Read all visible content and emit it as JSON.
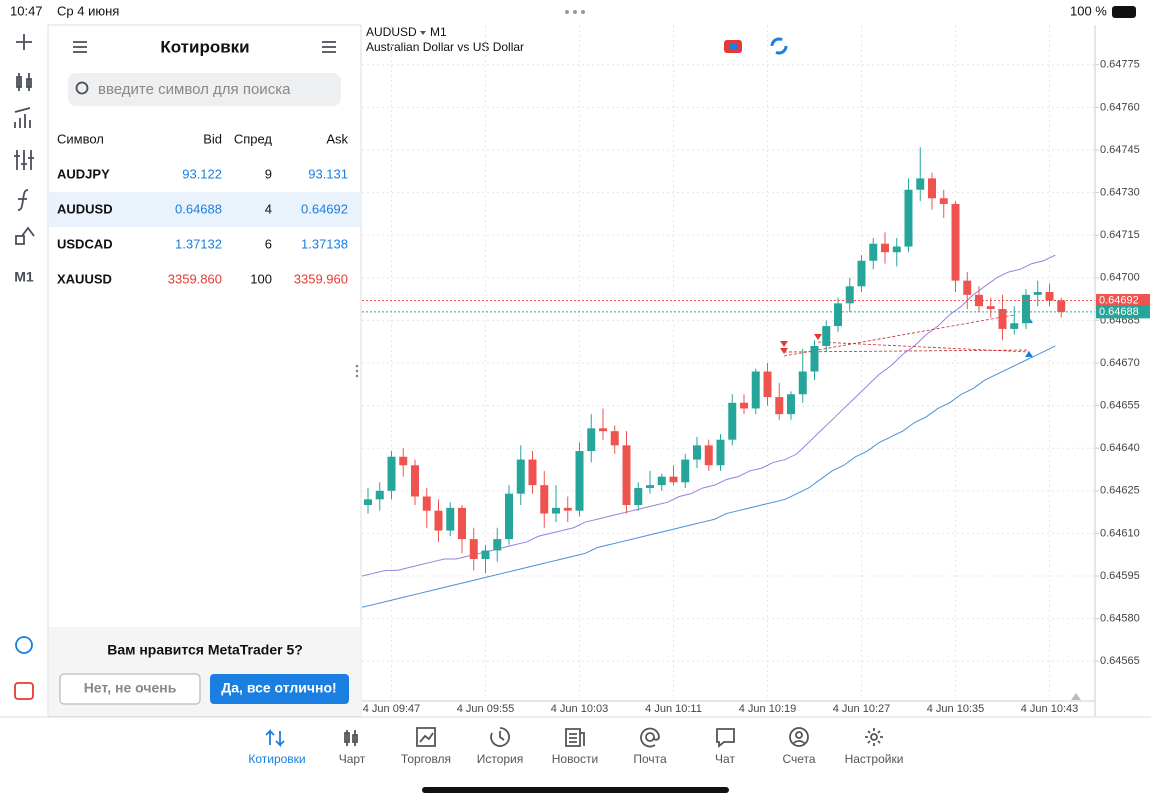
{
  "status": {
    "time": "10:47",
    "date": "Ср 4 июня",
    "battery": "100 %"
  },
  "quotes": {
    "title": "Котировки",
    "search_placeholder": "введите символ для поиска",
    "columns": [
      "Символ",
      "Bid",
      "Спред",
      "Ask"
    ],
    "rows": [
      {
        "symbol": "AUDJPY",
        "bid": "93.122",
        "spread": "9",
        "ask": "93.131"
      },
      {
        "symbol": "AUDUSD",
        "bid": "0.64688",
        "spread": "4",
        "ask": "0.64692"
      },
      {
        "symbol": "USDCAD",
        "bid": "1.37132",
        "spread": "6",
        "ask": "1.37138"
      },
      {
        "symbol": "XAUUSD",
        "bid": "3359.860",
        "spread": "100",
        "ask": "3359.960"
      }
    ]
  },
  "feedback": {
    "question": "Вам нравится MetaTrader 5?",
    "no": "Нет, не очень",
    "yes": "Да, все отлично!"
  },
  "sidebar": {
    "timeframe": "M1"
  },
  "nav": {
    "tabs": [
      "Котировки",
      "Чарт",
      "Торговля",
      "История",
      "Новости",
      "Почта",
      "Чат",
      "Счета",
      "Настройки"
    ]
  },
  "chart_data": {
    "type": "candlestick",
    "title": "AUDUSD",
    "timeframe": "M1",
    "subtitle": "Australian Dollar vs US Dollar",
    "up_color": "#26a69a",
    "down_color": "#ef5350",
    "categories": [
      null,
      null,
      "4 Jun 09:47",
      null,
      null,
      null,
      null,
      null,
      null,
      null,
      "4 Jun 09:55",
      null,
      null,
      null,
      null,
      null,
      null,
      null,
      "4 Jun 10:03",
      null,
      null,
      null,
      null,
      null,
      null,
      null,
      "4 Jun 10:11",
      null,
      null,
      null,
      null,
      null,
      null,
      null,
      "4 Jun 10:19",
      null,
      null,
      null,
      null,
      null,
      null,
      null,
      "4 Jun 10:27",
      null,
      null,
      null,
      null,
      null,
      null,
      null,
      "4 Jun 10:35",
      null,
      null,
      null,
      null,
      null,
      null,
      null,
      "4 Jun 10:43",
      null
    ],
    "candles": [
      [
        0.6462,
        0.64626,
        0.64617,
        0.64622
      ],
      [
        0.64622,
        0.64628,
        0.64618,
        0.64625
      ],
      [
        0.64625,
        0.64639,
        0.64622,
        0.64637
      ],
      [
        0.64637,
        0.6464,
        0.6463,
        0.64634
      ],
      [
        0.64634,
        0.64636,
        0.6462,
        0.64623
      ],
      [
        0.64623,
        0.64626,
        0.64612,
        0.64618
      ],
      [
        0.64618,
        0.64622,
        0.64607,
        0.64611
      ],
      [
        0.64611,
        0.64621,
        0.64609,
        0.64619
      ],
      [
        0.64619,
        0.6462,
        0.64603,
        0.64608
      ],
      [
        0.64608,
        0.64612,
        0.64597,
        0.64601
      ],
      [
        0.64601,
        0.64606,
        0.64596,
        0.64604
      ],
      [
        0.64604,
        0.64612,
        0.646,
        0.64608
      ],
      [
        0.64608,
        0.64627,
        0.64606,
        0.64624
      ],
      [
        0.64624,
        0.64641,
        0.6462,
        0.64636
      ],
      [
        0.64636,
        0.64639,
        0.64624,
        0.64627
      ],
      [
        0.64627,
        0.64632,
        0.64612,
        0.64617
      ],
      [
        0.64617,
        0.64627,
        0.64614,
        0.64619
      ],
      [
        0.64619,
        0.64623,
        0.64614,
        0.64618
      ],
      [
        0.64618,
        0.64642,
        0.64616,
        0.64639
      ],
      [
        0.64639,
        0.64652,
        0.64635,
        0.64647
      ],
      [
        0.64647,
        0.64654,
        0.64643,
        0.64646
      ],
      [
        0.64646,
        0.64648,
        0.64638,
        0.64641
      ],
      [
        0.64641,
        0.64646,
        0.64617,
        0.6462
      ],
      [
        0.6462,
        0.64628,
        0.64618,
        0.64626
      ],
      [
        0.64626,
        0.64632,
        0.64624,
        0.64627
      ],
      [
        0.64627,
        0.64631,
        0.64625,
        0.6463
      ],
      [
        0.6463,
        0.64634,
        0.64627,
        0.64628
      ],
      [
        0.64628,
        0.64638,
        0.64626,
        0.64636
      ],
      [
        0.64636,
        0.64644,
        0.64633,
        0.64641
      ],
      [
        0.64641,
        0.64643,
        0.64632,
        0.64634
      ],
      [
        0.64634,
        0.64645,
        0.64632,
        0.64643
      ],
      [
        0.64643,
        0.64659,
        0.64641,
        0.64656
      ],
      [
        0.64656,
        0.64659,
        0.64652,
        0.64654
      ],
      [
        0.64654,
        0.64668,
        0.64652,
        0.64667
      ],
      [
        0.64667,
        0.6467,
        0.64655,
        0.64658
      ],
      [
        0.64658,
        0.64663,
        0.6465,
        0.64652
      ],
      [
        0.64652,
        0.6466,
        0.6465,
        0.64659
      ],
      [
        0.64659,
        0.64675,
        0.64656,
        0.64667
      ],
      [
        0.64667,
        0.64678,
        0.64664,
        0.64676
      ],
      [
        0.64676,
        0.64685,
        0.64674,
        0.64683
      ],
      [
        0.64683,
        0.64693,
        0.64681,
        0.64691
      ],
      [
        0.64691,
        0.647,
        0.64688,
        0.64697
      ],
      [
        0.64697,
        0.64708,
        0.64695,
        0.64706
      ],
      [
        0.64706,
        0.64714,
        0.64703,
        0.64712
      ],
      [
        0.64712,
        0.64716,
        0.64705,
        0.64709
      ],
      [
        0.64709,
        0.64714,
        0.64704,
        0.64711
      ],
      [
        0.64711,
        0.64735,
        0.64709,
        0.64731
      ],
      [
        0.64731,
        0.64746,
        0.64727,
        0.64735
      ],
      [
        0.64735,
        0.64737,
        0.64724,
        0.64728
      ],
      [
        0.64728,
        0.64731,
        0.64721,
        0.64726
      ],
      [
        0.64726,
        0.64727,
        0.64695,
        0.64699
      ],
      [
        0.64699,
        0.64702,
        0.64689,
        0.64694
      ],
      [
        0.64694,
        0.64697,
        0.64688,
        0.6469
      ],
      [
        0.6469,
        0.64693,
        0.64686,
        0.64689
      ],
      [
        0.64689,
        0.64694,
        0.64678,
        0.64682
      ],
      [
        0.64682,
        0.6469,
        0.6468,
        0.64684
      ],
      [
        0.64684,
        0.64696,
        0.64682,
        0.64694
      ],
      [
        0.64694,
        0.64699,
        0.6469,
        0.64695
      ],
      [
        0.64695,
        0.64698,
        0.6469,
        0.64692
      ],
      [
        0.64692,
        0.64693,
        0.64686,
        0.64688
      ]
    ],
    "series": [
      {
        "color": "#9b7fe0",
        "values": [
          0.64595,
          0.64596,
          0.64597,
          0.64597,
          0.64598,
          0.64599,
          0.646,
          0.64601,
          0.64601,
          0.64602,
          0.64603,
          0.64604,
          0.64605,
          0.64606,
          0.64607,
          0.64609,
          0.6461,
          0.64611,
          0.64612,
          0.64614,
          0.64615,
          0.64616,
          0.64617,
          0.64618,
          0.64619,
          0.6462,
          0.64621,
          0.64623,
          0.64624,
          0.64626,
          0.64627,
          0.64629,
          0.6463,
          0.64632,
          0.64633,
          0.64635,
          0.64636,
          0.64638,
          0.64642,
          0.64646,
          0.6465,
          0.64654,
          0.64658,
          0.64662,
          0.64666,
          0.64669,
          0.64673,
          0.64676,
          0.6468,
          0.64683,
          0.64687,
          0.6469,
          0.64694,
          0.64697,
          0.647,
          0.64702,
          0.64703,
          0.64705,
          0.64706,
          0.64708
        ]
      },
      {
        "color": "#4a90d9",
        "values": [
          0.64584,
          0.64585,
          0.64586,
          0.64587,
          0.64588,
          0.64589,
          0.6459,
          0.64591,
          0.64592,
          0.64593,
          0.64594,
          0.64595,
          0.64596,
          0.64597,
          0.64598,
          0.64599,
          0.646,
          0.64601,
          0.64602,
          0.64603,
          0.64605,
          0.64606,
          0.64607,
          0.64608,
          0.64609,
          0.6461,
          0.64611,
          0.64612,
          0.64613,
          0.64614,
          0.64615,
          0.64617,
          0.64618,
          0.64619,
          0.6462,
          0.64621,
          0.64622,
          0.64624,
          0.64626,
          0.64629,
          0.64632,
          0.64634,
          0.64637,
          0.64639,
          0.64642,
          0.64644,
          0.64646,
          0.64649,
          0.64651,
          0.64654,
          0.64656,
          0.64659,
          0.64661,
          0.64664,
          0.64666,
          0.64668,
          0.6467,
          0.64672,
          0.64674,
          0.64676
        ]
      }
    ],
    "ask": {
      "value": 0.64692,
      "label": "0.64692",
      "color": "#ef5350"
    },
    "bid": {
      "value": 0.64688,
      "label": "0.64688",
      "color": "#26a69a"
    },
    "ylim": [
      0.64551,
      0.64789
    ],
    "yticks": [
      0.64775,
      {
        "value": 0.6476,
        "label": "0.64760"
      },
      0.64745,
      {
        "value": 0.6473,
        "label": "0.64730"
      },
      0.64715,
      {
        "value": 0.647,
        "label": "0.64700"
      },
      0.64685,
      {
        "value": 0.6467,
        "label": "0.64670"
      },
      0.64655,
      {
        "value": 0.6464,
        "label": "0.64640"
      },
      0.64625,
      {
        "value": 0.6461,
        "label": "0.64610"
      },
      0.64595,
      {
        "value": 0.6458,
        "label": "0.64580"
      },
      0.64565
    ],
    "grid": true
  }
}
